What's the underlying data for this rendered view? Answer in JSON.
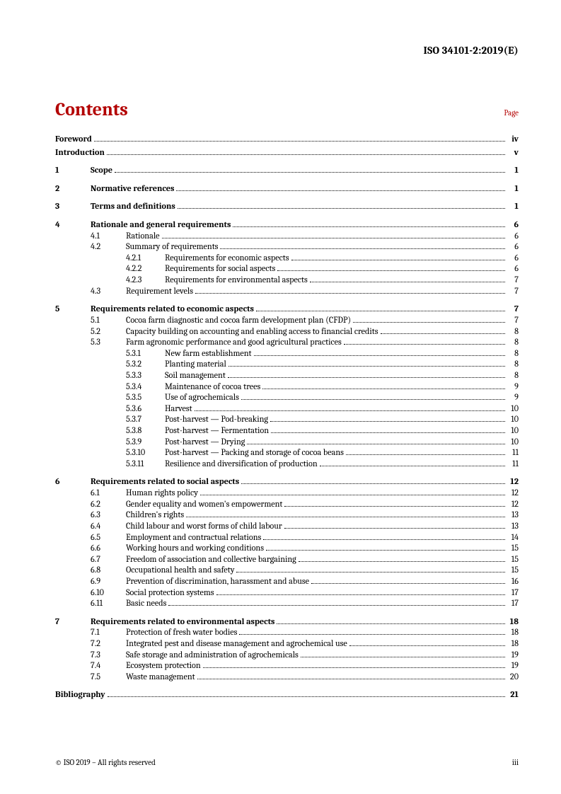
{
  "doc_id": "ISO 34101-2:2019(E)",
  "heading": "Contents",
  "page_label": "Page",
  "footer_left": "© ISO 2019 – All rights reserved",
  "footer_right": "iii",
  "toc": [
    {
      "level": 0,
      "bold": true,
      "label": "",
      "title": "Foreword",
      "page": "iv",
      "gap_after": "mini"
    },
    {
      "level": 0,
      "bold": true,
      "label": "",
      "title": "Introduction",
      "page": "v",
      "gap_after": "section"
    },
    {
      "level": 1,
      "bold": true,
      "label": "1",
      "title": "Scope",
      "page": "1",
      "gap_after": "section"
    },
    {
      "level": 1,
      "bold": true,
      "label": "2",
      "title": "Normative references",
      "page": "1",
      "gap_after": "section"
    },
    {
      "level": 1,
      "bold": true,
      "label": "3",
      "title": "Terms and definitions",
      "page": "1",
      "gap_after": "section"
    },
    {
      "level": 1,
      "bold": true,
      "label": "4",
      "title": "Rationale and general requirements",
      "page": "6"
    },
    {
      "level": 2,
      "label": "4.1",
      "title": "Rationale",
      "page": "6"
    },
    {
      "level": 2,
      "label": "4.2",
      "title": "Summary of requirements",
      "page": "6"
    },
    {
      "level": 3,
      "label": "4.2.1",
      "title": "Requirements for economic aspects",
      "page": "6"
    },
    {
      "level": 3,
      "label": "4.2.2",
      "title": "Requirements for social aspects",
      "page": "6"
    },
    {
      "level": 3,
      "label": "4.2.3",
      "title": "Requirements for environmental aspects",
      "page": "7"
    },
    {
      "level": 2,
      "label": "4.3",
      "title": "Requirement levels",
      "page": "7",
      "gap_after": "section"
    },
    {
      "level": 1,
      "bold": true,
      "label": "5",
      "title": "Requirements related to economic aspects",
      "page": "7"
    },
    {
      "level": 2,
      "label": "5.1",
      "title": "Cocoa farm diagnostic and cocoa farm development plan (CFDP)",
      "page": "7"
    },
    {
      "level": 2,
      "label": "5.2",
      "title": "Capacity building on accounting and enabling access to financial credits",
      "page": "8"
    },
    {
      "level": 2,
      "label": "5.3",
      "title": "Farm agronomic performance and good agricultural practices",
      "page": "8"
    },
    {
      "level": 3,
      "label": "5.3.1",
      "title": "New farm establishment",
      "page": "8"
    },
    {
      "level": 3,
      "label": "5.3.2",
      "title": "Planting material",
      "page": "8"
    },
    {
      "level": 3,
      "label": "5.3.3",
      "title": "Soil management",
      "page": "8"
    },
    {
      "level": 3,
      "label": "5.3.4",
      "title": "Maintenance of cocoa trees",
      "page": "9"
    },
    {
      "level": 3,
      "label": "5.3.5",
      "title": "Use of agrochemicals",
      "page": "9"
    },
    {
      "level": 3,
      "label": "5.3.6",
      "title": "Harvest",
      "page": "10"
    },
    {
      "level": 3,
      "label": "5.3.7",
      "title": "Post-harvest — Pod-breaking",
      "page": "10"
    },
    {
      "level": 3,
      "label": "5.3.8",
      "title": "Post-harvest — Fermentation",
      "page": "10"
    },
    {
      "level": 3,
      "label": "5.3.9",
      "title": "Post-harvest — Drying",
      "page": "10"
    },
    {
      "level": 3,
      "label": "5.3.10",
      "title": "Post-harvest — Packing and storage of cocoa beans",
      "page": "11"
    },
    {
      "level": 3,
      "label": "5.3.11",
      "title": "Resilience and diversification of production",
      "page": "11",
      "gap_after": "section"
    },
    {
      "level": 1,
      "bold": true,
      "label": "6",
      "title": "Requirements related to social aspects",
      "page": "12"
    },
    {
      "level": 2,
      "label": "6.1",
      "title": "Human rights policy",
      "page": "12"
    },
    {
      "level": 2,
      "label": "6.2",
      "title": "Gender equality and women's empowerment",
      "page": "12"
    },
    {
      "level": 2,
      "label": "6.3",
      "title": "Children's rights",
      "page": "13"
    },
    {
      "level": 2,
      "label": "6.4",
      "title": "Child labour and worst forms of child labour",
      "page": "13"
    },
    {
      "level": 2,
      "label": "6.5",
      "title": "Employment and contractual relations",
      "page": "14"
    },
    {
      "level": 2,
      "label": "6.6",
      "title": "Working hours and working conditions",
      "page": "15"
    },
    {
      "level": 2,
      "label": "6.7",
      "title": "Freedom of association and collective bargaining",
      "page": "15"
    },
    {
      "level": 2,
      "label": "6.8",
      "title": "Occupational health and safety",
      "page": "15"
    },
    {
      "level": 2,
      "label": "6.9",
      "title": "Prevention of discrimination, harassment and abuse",
      "page": "16"
    },
    {
      "level": 2,
      "label": "6.10",
      "title": "Social protection systems",
      "page": "17"
    },
    {
      "level": 2,
      "label": "6.11",
      "title": "Basic needs",
      "page": "17",
      "gap_after": "section"
    },
    {
      "level": 1,
      "bold": true,
      "label": "7",
      "title": "Requirements related to environmental aspects",
      "page": "18"
    },
    {
      "level": 2,
      "label": "7.1",
      "title": "Protection of fresh water bodies",
      "page": "18"
    },
    {
      "level": 2,
      "label": "7.2",
      "title": "Integrated pest and disease management and agrochemical use",
      "page": "18"
    },
    {
      "level": 2,
      "label": "7.3",
      "title": "Safe storage and administration of agrochemicals",
      "page": "19"
    },
    {
      "level": 2,
      "label": "7.4",
      "title": "Ecosystem protection",
      "page": "19"
    },
    {
      "level": 2,
      "label": "7.5",
      "title": "Waste management",
      "page": "20",
      "gap_after": "section"
    },
    {
      "level": 0,
      "bold": true,
      "label": "",
      "title": "Bibliography",
      "page": "21"
    }
  ]
}
